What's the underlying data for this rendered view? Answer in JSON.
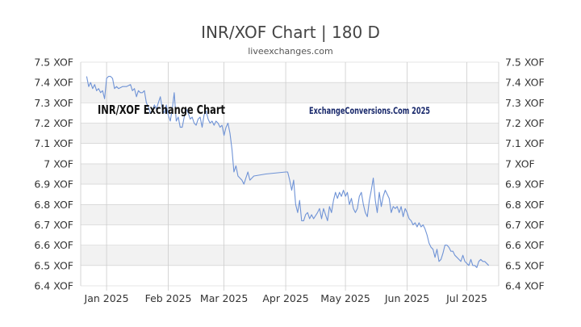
{
  "title": "INR/XOF Chart | 180 D",
  "subtitle": "liveexchanges.com",
  "annotations": {
    "left": "INR/XOF Exchange Chart",
    "right": "ExchangeConversions.Com 2025"
  },
  "colors": {
    "line": "#6f93d6",
    "band": "#f2f2f2",
    "grid": "#cccccc"
  },
  "chart_data": {
    "type": "line",
    "title": "INR/XOF Chart | 180 D",
    "ylim": [
      6.4,
      7.5
    ],
    "grid": true,
    "y_ticks": [
      "7.5 XOF",
      "7.4 XOF",
      "7.3 XOF",
      "7.2 XOF",
      "7.1 XOF",
      "7 XOF",
      "6.9 XOF",
      "6.8 XOF",
      "6.7 XOF",
      "6.6 XOF",
      "6.5 XOF",
      "6.4 XOF"
    ],
    "y_tick_values": [
      7.5,
      7.4,
      7.3,
      7.2,
      7.1,
      7.0,
      6.9,
      6.8,
      6.7,
      6.6,
      6.5,
      6.4
    ],
    "x_ticks": [
      {
        "label": "Jan 2025",
        "day": 0
      },
      {
        "label": "Feb 2025",
        "day": 31
      },
      {
        "label": "Mar 2025",
        "day": 59
      },
      {
        "label": "Apr 2025",
        "day": 90
      },
      {
        "label": "May 2025",
        "day": 120
      },
      {
        "label": "Jun 2025",
        "day": 151
      },
      {
        "label": "Jul 2025",
        "day": 181
      }
    ],
    "series": [
      {
        "points": [
          [
            -10,
            7.43
          ],
          [
            -9,
            7.38
          ],
          [
            -8,
            7.4
          ],
          [
            -7,
            7.37
          ],
          [
            -6,
            7.39
          ],
          [
            -5,
            7.36
          ],
          [
            -4,
            7.37
          ],
          [
            -3,
            7.35
          ],
          [
            -2,
            7.36
          ],
          [
            -1,
            7.32
          ],
          [
            0,
            7.42
          ],
          [
            1,
            7.43
          ],
          [
            2,
            7.43
          ],
          [
            3,
            7.42
          ],
          [
            4,
            7.37
          ],
          [
            5,
            7.38
          ],
          [
            6,
            7.37
          ],
          [
            8,
            7.38
          ],
          [
            10,
            7.38
          ],
          [
            12,
            7.39
          ],
          [
            13,
            7.36
          ],
          [
            14,
            7.37
          ],
          [
            15,
            7.33
          ],
          [
            16,
            7.36
          ],
          [
            17,
            7.35
          ],
          [
            18,
            7.35
          ],
          [
            19,
            7.36
          ],
          [
            20,
            7.3
          ],
          [
            21,
            7.28
          ],
          [
            22,
            7.25
          ],
          [
            23,
            7.26
          ],
          [
            24,
            7.29
          ],
          [
            25,
            7.27
          ],
          [
            26,
            7.3
          ],
          [
            27,
            7.33
          ],
          [
            28,
            7.27
          ],
          [
            29,
            7.25
          ],
          [
            30,
            7.29
          ],
          [
            31,
            7.24
          ],
          [
            32,
            7.21
          ],
          [
            33,
            7.27
          ],
          [
            34,
            7.35
          ],
          [
            35,
            7.21
          ],
          [
            36,
            7.23
          ],
          [
            37,
            7.18
          ],
          [
            38,
            7.18
          ],
          [
            39,
            7.23
          ],
          [
            40,
            7.27
          ],
          [
            41,
            7.25
          ],
          [
            42,
            7.22
          ],
          [
            43,
            7.23
          ],
          [
            44,
            7.2
          ],
          [
            45,
            7.19
          ],
          [
            46,
            7.22
          ],
          [
            47,
            7.23
          ],
          [
            48,
            7.18
          ],
          [
            49,
            7.24
          ],
          [
            50,
            7.26
          ],
          [
            51,
            7.22
          ],
          [
            52,
            7.2
          ],
          [
            53,
            7.21
          ],
          [
            54,
            7.19
          ],
          [
            55,
            7.21
          ],
          [
            56,
            7.2
          ],
          [
            57,
            7.18
          ],
          [
            58,
            7.19
          ],
          [
            59,
            7.14
          ],
          [
            60,
            7.18
          ],
          [
            61,
            7.2
          ],
          [
            62,
            7.15
          ],
          [
            63,
            7.07
          ],
          [
            64,
            6.96
          ],
          [
            65,
            6.99
          ],
          [
            66,
            6.94
          ],
          [
            67,
            6.93
          ],
          [
            68,
            6.92
          ],
          [
            69,
            6.9
          ],
          [
            70,
            6.93
          ],
          [
            71,
            6.96
          ],
          [
            72,
            6.92
          ],
          [
            74,
            6.94
          ],
          [
            80,
            6.95
          ],
          [
            90,
            6.96
          ],
          [
            91,
            6.96
          ],
          [
            92,
            6.92
          ],
          [
            93,
            6.87
          ],
          [
            94,
            6.92
          ],
          [
            95,
            6.8
          ],
          [
            96,
            6.76
          ],
          [
            97,
            6.82
          ],
          [
            98,
            6.72
          ],
          [
            99,
            6.72
          ],
          [
            100,
            6.75
          ],
          [
            101,
            6.76
          ],
          [
            102,
            6.73
          ],
          [
            103,
            6.75
          ],
          [
            104,
            6.73
          ],
          [
            106,
            6.76
          ],
          [
            107,
            6.78
          ],
          [
            108,
            6.73
          ],
          [
            109,
            6.78
          ],
          [
            110,
            6.75
          ],
          [
            111,
            6.72
          ],
          [
            112,
            6.79
          ],
          [
            113,
            6.76
          ],
          [
            114,
            6.82
          ],
          [
            115,
            6.86
          ],
          [
            116,
            6.83
          ],
          [
            117,
            6.86
          ],
          [
            118,
            6.84
          ],
          [
            119,
            6.87
          ],
          [
            120,
            6.84
          ],
          [
            121,
            6.86
          ],
          [
            122,
            6.8
          ],
          [
            123,
            6.83
          ],
          [
            124,
            6.78
          ],
          [
            125,
            6.76
          ],
          [
            126,
            6.78
          ],
          [
            127,
            6.84
          ],
          [
            128,
            6.86
          ],
          [
            129,
            6.8
          ],
          [
            130,
            6.76
          ],
          [
            131,
            6.74
          ],
          [
            132,
            6.82
          ],
          [
            133,
            6.87
          ],
          [
            134,
            6.93
          ],
          [
            135,
            6.82
          ],
          [
            136,
            6.76
          ],
          [
            137,
            6.86
          ],
          [
            138,
            6.79
          ],
          [
            139,
            6.84
          ],
          [
            140,
            6.87
          ],
          [
            141,
            6.85
          ],
          [
            142,
            6.83
          ],
          [
            143,
            6.76
          ],
          [
            144,
            6.79
          ],
          [
            145,
            6.78
          ],
          [
            146,
            6.79
          ],
          [
            147,
            6.76
          ],
          [
            148,
            6.79
          ],
          [
            149,
            6.74
          ],
          [
            150,
            6.78
          ],
          [
            151,
            6.76
          ],
          [
            152,
            6.73
          ],
          [
            153,
            6.72
          ],
          [
            154,
            6.7
          ],
          [
            155,
            6.71
          ],
          [
            156,
            6.69
          ],
          [
            157,
            6.71
          ],
          [
            158,
            6.69
          ],
          [
            159,
            6.7
          ],
          [
            160,
            6.68
          ],
          [
            161,
            6.65
          ],
          [
            162,
            6.61
          ],
          [
            163,
            6.59
          ],
          [
            164,
            6.58
          ],
          [
            165,
            6.54
          ],
          [
            166,
            6.58
          ],
          [
            167,
            6.52
          ],
          [
            168,
            6.53
          ],
          [
            169,
            6.56
          ],
          [
            170,
            6.6
          ],
          [
            171,
            6.6
          ],
          [
            172,
            6.59
          ],
          [
            173,
            6.57
          ],
          [
            174,
            6.57
          ],
          [
            175,
            6.55
          ],
          [
            176,
            6.54
          ],
          [
            177,
            6.53
          ],
          [
            178,
            6.52
          ],
          [
            179,
            6.55
          ],
          [
            180,
            6.52
          ],
          [
            181,
            6.51
          ],
          [
            182,
            6.5
          ],
          [
            183,
            6.53
          ],
          [
            184,
            6.5
          ],
          [
            185,
            6.5
          ],
          [
            186,
            6.49
          ],
          [
            187,
            6.52
          ],
          [
            188,
            6.53
          ],
          [
            189,
            6.52
          ],
          [
            190,
            6.52
          ],
          [
            191,
            6.51
          ],
          [
            192,
            6.5
          ]
        ]
      }
    ]
  }
}
